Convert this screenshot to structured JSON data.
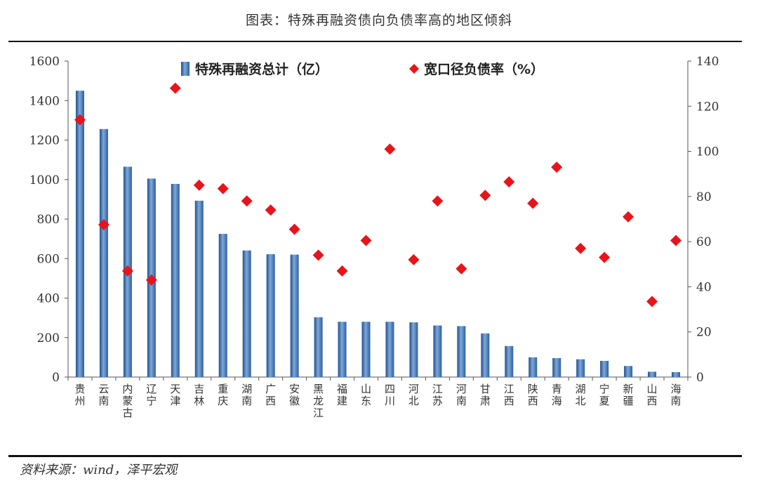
{
  "title": "图表：特殊再融资债向负债率高的地区倾斜",
  "source": "资料来源：wind，泽平宏观",
  "chart_data": {
    "type": "bar+scatter",
    "categories": [
      "贵州",
      "云南",
      "内蒙古",
      "辽宁",
      "天津",
      "吉林",
      "重庆",
      "湖南",
      "广西",
      "安徽",
      "黑龙江",
      "福建",
      "山东",
      "四川",
      "河北",
      "江苏",
      "河南",
      "甘肃",
      "江西",
      "陕西",
      "青海",
      "湖北",
      "宁夏",
      "新疆",
      "山西",
      "海南"
    ],
    "series": [
      {
        "name": "特殊再融资总计（亿）",
        "type": "bar",
        "axis": "left",
        "color": "#3a70b0",
        "values": [
          1450,
          1256,
          1065,
          1005,
          978,
          893,
          725,
          641,
          622,
          620,
          303,
          280,
          280,
          280,
          277,
          261,
          258,
          221,
          157,
          100,
          96,
          90,
          82,
          56,
          27,
          25
        ]
      },
      {
        "name": "宽口径负债率（%）",
        "type": "scatter",
        "axis": "right",
        "color": "#e8141a",
        "marker": "diamond",
        "values": [
          114,
          67.5,
          47,
          43,
          128,
          85,
          83.5,
          78,
          74,
          65.5,
          54,
          47,
          60.5,
          101,
          52,
          78,
          48,
          80.5,
          86.5,
          77,
          93,
          57,
          53,
          71,
          33.5,
          60.5
        ]
      }
    ],
    "y_left": {
      "ylim": [
        0,
        1600
      ],
      "ticks": [
        0,
        200,
        400,
        600,
        800,
        1000,
        1200,
        1400,
        1600
      ]
    },
    "y_right": {
      "ylim": [
        0,
        140
      ],
      "ticks": [
        0,
        20,
        40,
        60,
        80,
        100,
        120,
        140
      ]
    },
    "grid": false,
    "legend": "top-center"
  }
}
